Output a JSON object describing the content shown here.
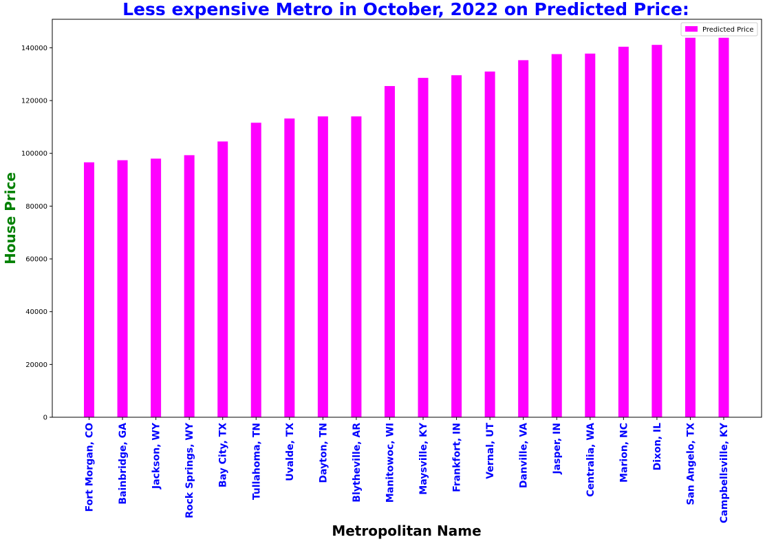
{
  "chart_data": {
    "type": "bar",
    "title": "Less expensive Metro in October, 2022 on Predicted Price:",
    "xlabel": "Metropolitan Name",
    "ylabel": "House Price",
    "ylim": [
      0,
      150800
    ],
    "yticks": [
      0,
      20000,
      40000,
      60000,
      80000,
      100000,
      120000,
      140000
    ],
    "ytick_labels": [
      "0",
      "20000",
      "40000",
      "60000",
      "80000",
      "100000",
      "120000",
      "140000"
    ],
    "grid": false,
    "legend_position": "top-right",
    "colors": {
      "bar": "#ff00ff",
      "title": "#0000ff",
      "xlabel": "#000000",
      "ylabel": "#008000",
      "tick_labels_x": "#0000ff"
    },
    "categories": [
      "Fort Morgan, CO",
      "Bainbridge, GA",
      "Jackson, WY",
      "Rock Springs, WY",
      "Bay City, TX",
      "Tullahoma, TN",
      "Uvalde, TX",
      "Dayton, TN",
      "Blytheville, AR",
      "Manitowoc, WI",
      "Maysville, KY",
      "Frankfort, IN",
      "Vernal, UT",
      "Danville, VA",
      "Jasper, IN",
      "Centralia, WA",
      "Marion, NC",
      "Dixon, IL",
      "San Angelo, TX",
      "Campbellsville, KY"
    ],
    "series": [
      {
        "name": "Predicted Price",
        "values": [
          96600,
          97400,
          98000,
          99300,
          104500,
          111600,
          113200,
          114000,
          114000,
          125500,
          128600,
          129600,
          131000,
          135300,
          137600,
          137800,
          140400,
          141100,
          143800,
          143800
        ]
      }
    ]
  }
}
